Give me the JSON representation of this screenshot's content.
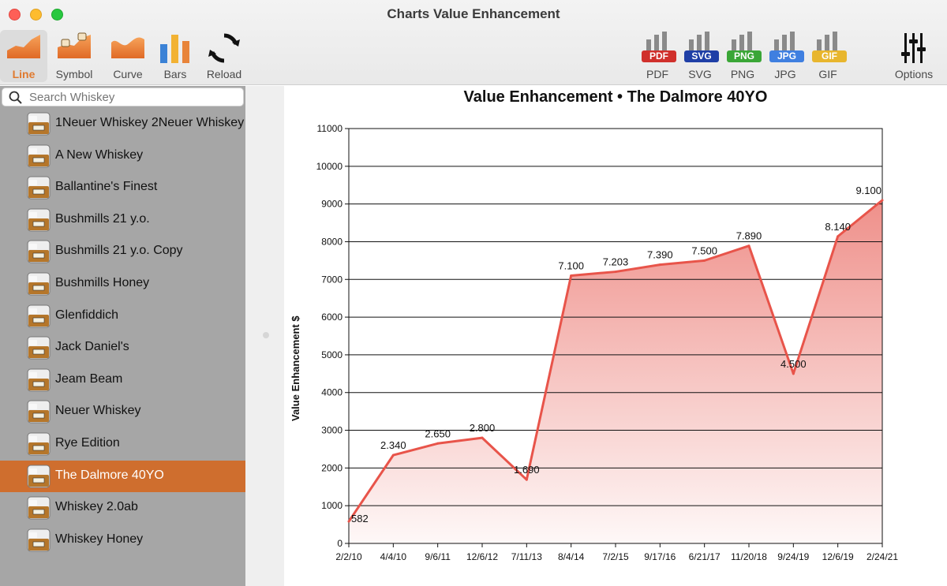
{
  "window": {
    "title": "Charts Value Enhancement"
  },
  "toolbar": {
    "chart_types": [
      {
        "label": "Line",
        "icon": "line-chart-icon",
        "active": true
      },
      {
        "label": "Symbol",
        "icon": "symbol-chart-icon",
        "active": false
      },
      {
        "label": "Curve",
        "icon": "curve-chart-icon",
        "active": false
      },
      {
        "label": "Bars",
        "icon": "bar-chart-icon",
        "active": false
      },
      {
        "label": "Reload",
        "icon": "reload-icon",
        "active": false
      }
    ],
    "exports": [
      {
        "label": "PDF",
        "badge": "PDF",
        "color": "#d0302c"
      },
      {
        "label": "SVG",
        "badge": "SVG",
        "color": "#1f3fa6"
      },
      {
        "label": "PNG",
        "badge": "PNG",
        "color": "#3aa636"
      },
      {
        "label": "JPG",
        "badge": "JPG",
        "color": "#3f7fe0"
      },
      {
        "label": "GIF",
        "badge": "GIF",
        "color": "#e8b62e"
      }
    ],
    "options_label": "Options"
  },
  "sidebar": {
    "search_placeholder": "Search Whiskey",
    "items": [
      "1Neuer Whiskey 2Neuer Whiskey",
      "A New Whiskey",
      "Ballantine's Finest",
      "Bushmills 21 y.o.",
      "Bushmills 21 y.o. Copy",
      "Bushmills Honey",
      "Glenfiddich",
      "Jack Daniel's",
      "Jeam Beam",
      "Neuer Whiskey",
      "Rye Edition",
      "The Dalmore 40YO",
      "Whiskey 2.0ab",
      "Whiskey Honey"
    ],
    "selected_index": 11
  },
  "colors": {
    "accent": "#cf6e2e",
    "line": "#e8544a",
    "fill": "#ee8a84"
  },
  "chart_data": {
    "type": "area",
    "title": "Value Enhancement • The Dalmore 40YO",
    "ylabel": "Value Enhancement $",
    "xlabel": "",
    "ylim": [
      0,
      11000
    ],
    "yticks": [
      0,
      1000,
      2000,
      3000,
      4000,
      5000,
      6000,
      7000,
      8000,
      9000,
      10000,
      11000
    ],
    "categories": [
      "2/2/10",
      "4/4/10",
      "9/6/11",
      "12/6/12",
      "7/11/13",
      "8/4/14",
      "7/2/15",
      "9/17/16",
      "6/21/17",
      "11/20/18",
      "9/24/19",
      "12/6/19",
      "2/24/21"
    ],
    "points": [
      {
        "x": "2/2/10",
        "y": 582,
        "label": "582"
      },
      {
        "x": "4/4/10",
        "y": 2340,
        "label": "2.340"
      },
      {
        "x": "9/6/11",
        "y": 2650,
        "label": "2.650"
      },
      {
        "x": "12/6/12",
        "y": 2800,
        "label": "2.800"
      },
      {
        "x": "7/11/13",
        "y": 1690,
        "label": "1.690"
      },
      {
        "x": "8/4/14",
        "y": 7100,
        "label": "7.100"
      },
      {
        "x": "7/2/15",
        "y": 7203,
        "label": "7.203"
      },
      {
        "x": "9/17/16",
        "y": 7390,
        "label": "7.390"
      },
      {
        "x": "6/21/17",
        "y": 7500,
        "label": "7.500"
      },
      {
        "x": "11/20/18",
        "y": 7890,
        "label": "7.890"
      },
      {
        "x": "9/24/19",
        "y": 4500,
        "label": "4.500"
      },
      {
        "x": "12/6/19",
        "y": 8140,
        "label": "8.140"
      },
      {
        "x": "2/24/21",
        "y": 9100,
        "label": "9.100"
      }
    ],
    "grid": true,
    "legend": "none"
  }
}
